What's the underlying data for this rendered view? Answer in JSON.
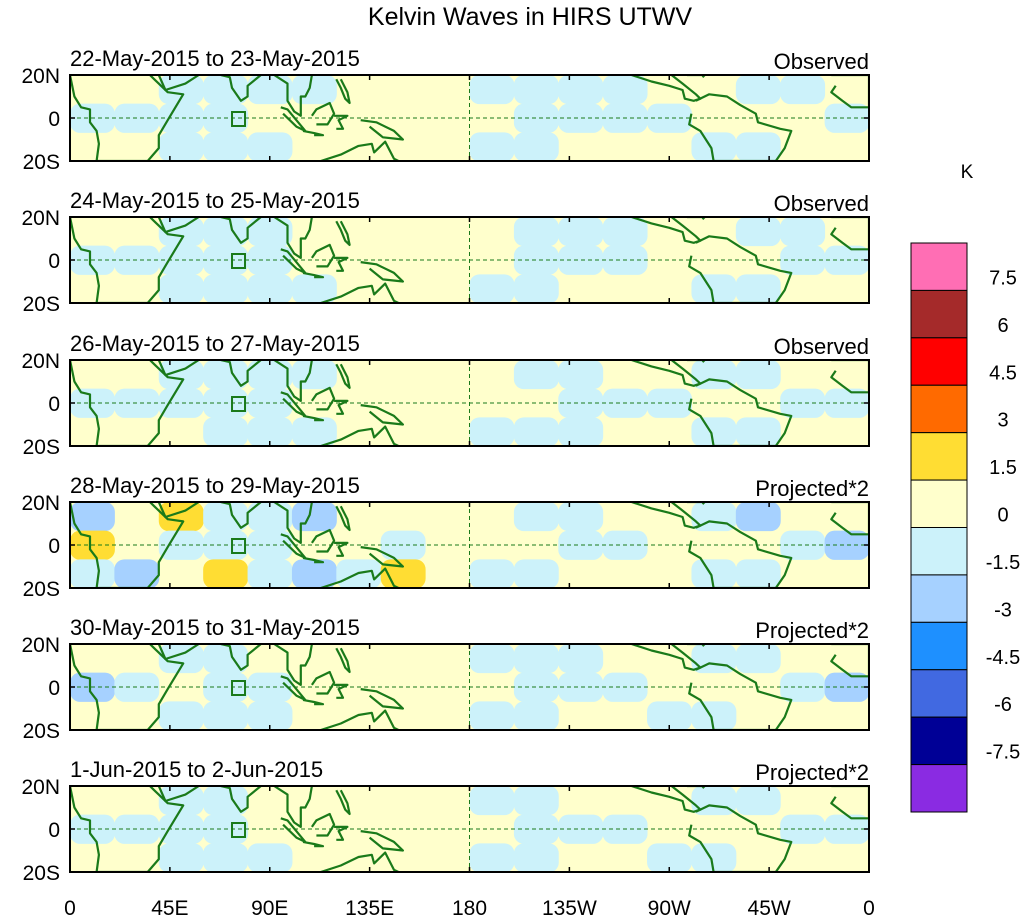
{
  "chart_data": {
    "type": "heatmap",
    "title": "Kelvin Waves in HIRS UTWV",
    "unit_label": "K",
    "lat_ticks": [
      "20N",
      "0",
      "20S"
    ],
    "lon_ticks": [
      "0",
      "45E",
      "90E",
      "135E",
      "180",
      "135W",
      "90W",
      "45W",
      "0"
    ],
    "lon_range": [
      0,
      360
    ],
    "lat_range": [
      -20,
      20
    ],
    "panels": [
      {
        "date_range": "22-May-2015 to 23-May-2015",
        "kind": "Observed",
        "scale": 1,
        "fields": [
          [
            0,
            0,
            -1,
            -1,
            -1,
            -1,
            0,
            0,
            0,
            -1,
            -1,
            -1,
            -1,
            0,
            0,
            -1,
            -1,
            0
          ],
          [
            -1,
            -1,
            -1,
            -1,
            0,
            0,
            0,
            0,
            0,
            0,
            -1,
            -1,
            -1,
            -1,
            0,
            0,
            0,
            -1
          ],
          [
            0,
            0,
            -1,
            -1,
            -1,
            0,
            0,
            0,
            0,
            -1,
            -1,
            0,
            0,
            0,
            -1,
            -1,
            0,
            0
          ]
        ]
      },
      {
        "date_range": "24-May-2015 to 25-May-2015",
        "kind": "Observed",
        "scale": 1,
        "fields": [
          [
            0,
            0,
            -1,
            -1,
            -1,
            0,
            0,
            0,
            0,
            0,
            -1,
            -1,
            -1,
            0,
            0,
            -1,
            -1,
            0
          ],
          [
            -1,
            -1,
            -1,
            -1,
            -1,
            0,
            0,
            0,
            0,
            0,
            -1,
            -1,
            -1,
            0,
            0,
            0,
            -1,
            -1
          ],
          [
            0,
            0,
            -1,
            -1,
            -1,
            -1,
            0,
            0,
            0,
            -1,
            -1,
            0,
            0,
            0,
            -1,
            -1,
            0,
            0
          ]
        ]
      },
      {
        "date_range": "26-May-2015 to 27-May-2015",
        "kind": "Observed",
        "scale": 1,
        "fields": [
          [
            0,
            0,
            -1,
            -1,
            -1,
            -1,
            0,
            0,
            0,
            0,
            -1,
            -1,
            0,
            0,
            -1,
            -1,
            0,
            0
          ],
          [
            -1,
            -1,
            -1,
            -1,
            -1,
            0,
            0,
            0,
            0,
            0,
            0,
            -1,
            -1,
            -1,
            0,
            0,
            -1,
            -1
          ],
          [
            0,
            0,
            0,
            -1,
            -1,
            -1,
            0,
            0,
            0,
            -1,
            -1,
            -1,
            0,
            0,
            -1,
            -1,
            0,
            0
          ]
        ]
      },
      {
        "date_range": "28-May-2015 to 29-May-2015",
        "kind": "Projected*2",
        "scale": 2,
        "fields": [
          [
            -2,
            0,
            1,
            -1,
            -1,
            -2,
            0,
            0,
            0,
            0,
            -1,
            -1,
            0,
            0,
            -1,
            -2,
            0,
            0
          ],
          [
            1,
            0,
            -1,
            -1,
            -1,
            0,
            0,
            -1,
            0,
            0,
            0,
            -1,
            -1,
            0,
            0,
            0,
            -1,
            -2
          ],
          [
            -1,
            -2,
            0,
            1,
            -1,
            -2,
            -1,
            1,
            0,
            -1,
            -1,
            0,
            0,
            0,
            -1,
            -1,
            0,
            0
          ]
        ]
      },
      {
        "date_range": "30-May-2015 to 31-May-2015",
        "kind": "Projected*2",
        "scale": 2,
        "fields": [
          [
            0,
            0,
            -1,
            -1,
            0,
            0,
            0,
            0,
            0,
            -1,
            -1,
            -1,
            0,
            0,
            -1,
            -1,
            0,
            0
          ],
          [
            -2,
            -1,
            0,
            -1,
            -1,
            0,
            0,
            0,
            0,
            0,
            -1,
            -1,
            -1,
            0,
            0,
            0,
            -1,
            -2
          ],
          [
            0,
            0,
            -1,
            -1,
            -1,
            0,
            0,
            0,
            0,
            -1,
            -1,
            0,
            0,
            -1,
            -1,
            0,
            0,
            0
          ]
        ]
      },
      {
        "date_range": "1-Jun-2015 to 2-Jun-2015",
        "kind": "Projected*2",
        "scale": 2,
        "fields": [
          [
            0,
            0,
            -1,
            -1,
            0,
            0,
            0,
            0,
            0,
            -1,
            -1,
            0,
            0,
            0,
            -1,
            -1,
            0,
            0
          ],
          [
            -1,
            -1,
            -1,
            -1,
            0,
            0,
            0,
            0,
            0,
            0,
            -1,
            -1,
            -1,
            0,
            0,
            0,
            -1,
            -1
          ],
          [
            0,
            0,
            -1,
            -1,
            -1,
            0,
            0,
            0,
            0,
            -1,
            -1,
            0,
            0,
            -1,
            -1,
            0,
            0,
            0
          ]
        ]
      }
    ],
    "colorbar": {
      "levels": [
        "7.5",
        "6",
        "4.5",
        "3",
        "1.5",
        "0",
        "-1.5",
        "-3",
        "-4.5",
        "-6",
        "-7.5"
      ],
      "colors": [
        "#ff6eb4",
        "#a52a2a",
        "#ff0000",
        "#ff6a00",
        "#ffdd33",
        "#ffffcc",
        "#ccf2fa",
        "#a6d1ff",
        "#1e90ff",
        "#4169e1",
        "#000096",
        "#8a2be2"
      ]
    },
    "grid": {
      "equator": "dashed",
      "dateline": "dashed"
    }
  },
  "colors": {
    "land": "#1a7a1a",
    "border": "#000000"
  }
}
